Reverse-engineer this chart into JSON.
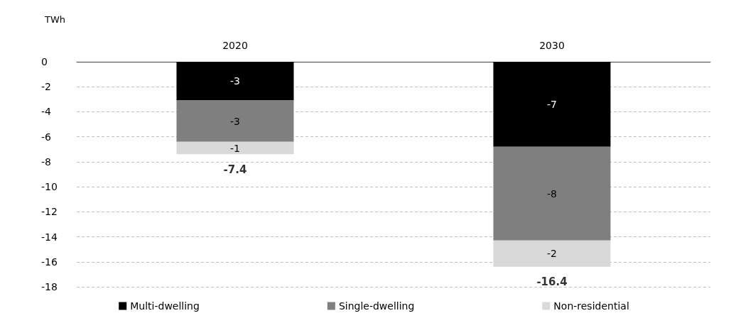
{
  "chart_data": {
    "type": "bar",
    "ylabel": "TWh",
    "stacked": true,
    "categories": [
      "2020",
      "2030"
    ],
    "series": [
      {
        "name": "Multi-dwelling",
        "color": "#000000",
        "values": [
          -3.1,
          -6.8
        ],
        "value_labels": [
          "-3",
          "-7"
        ]
      },
      {
        "name": "Single-dwelling",
        "color": "#7f7f7f",
        "values": [
          -3.3,
          -7.5
        ],
        "value_labels": [
          "-3",
          "-8"
        ]
      },
      {
        "name": "Non-residential",
        "color": "#d9d9d9",
        "values": [
          -1.0,
          -2.1
        ],
        "value_labels": [
          "-1",
          "-2"
        ]
      }
    ],
    "totals": [
      "-7.4",
      "-16.4"
    ],
    "ylim": [
      -18,
      0
    ],
    "yticks": [
      0,
      -2,
      -4,
      -6,
      -8,
      -10,
      -12,
      -14,
      -16,
      -18
    ],
    "grid": "y",
    "legend": "bottom"
  }
}
